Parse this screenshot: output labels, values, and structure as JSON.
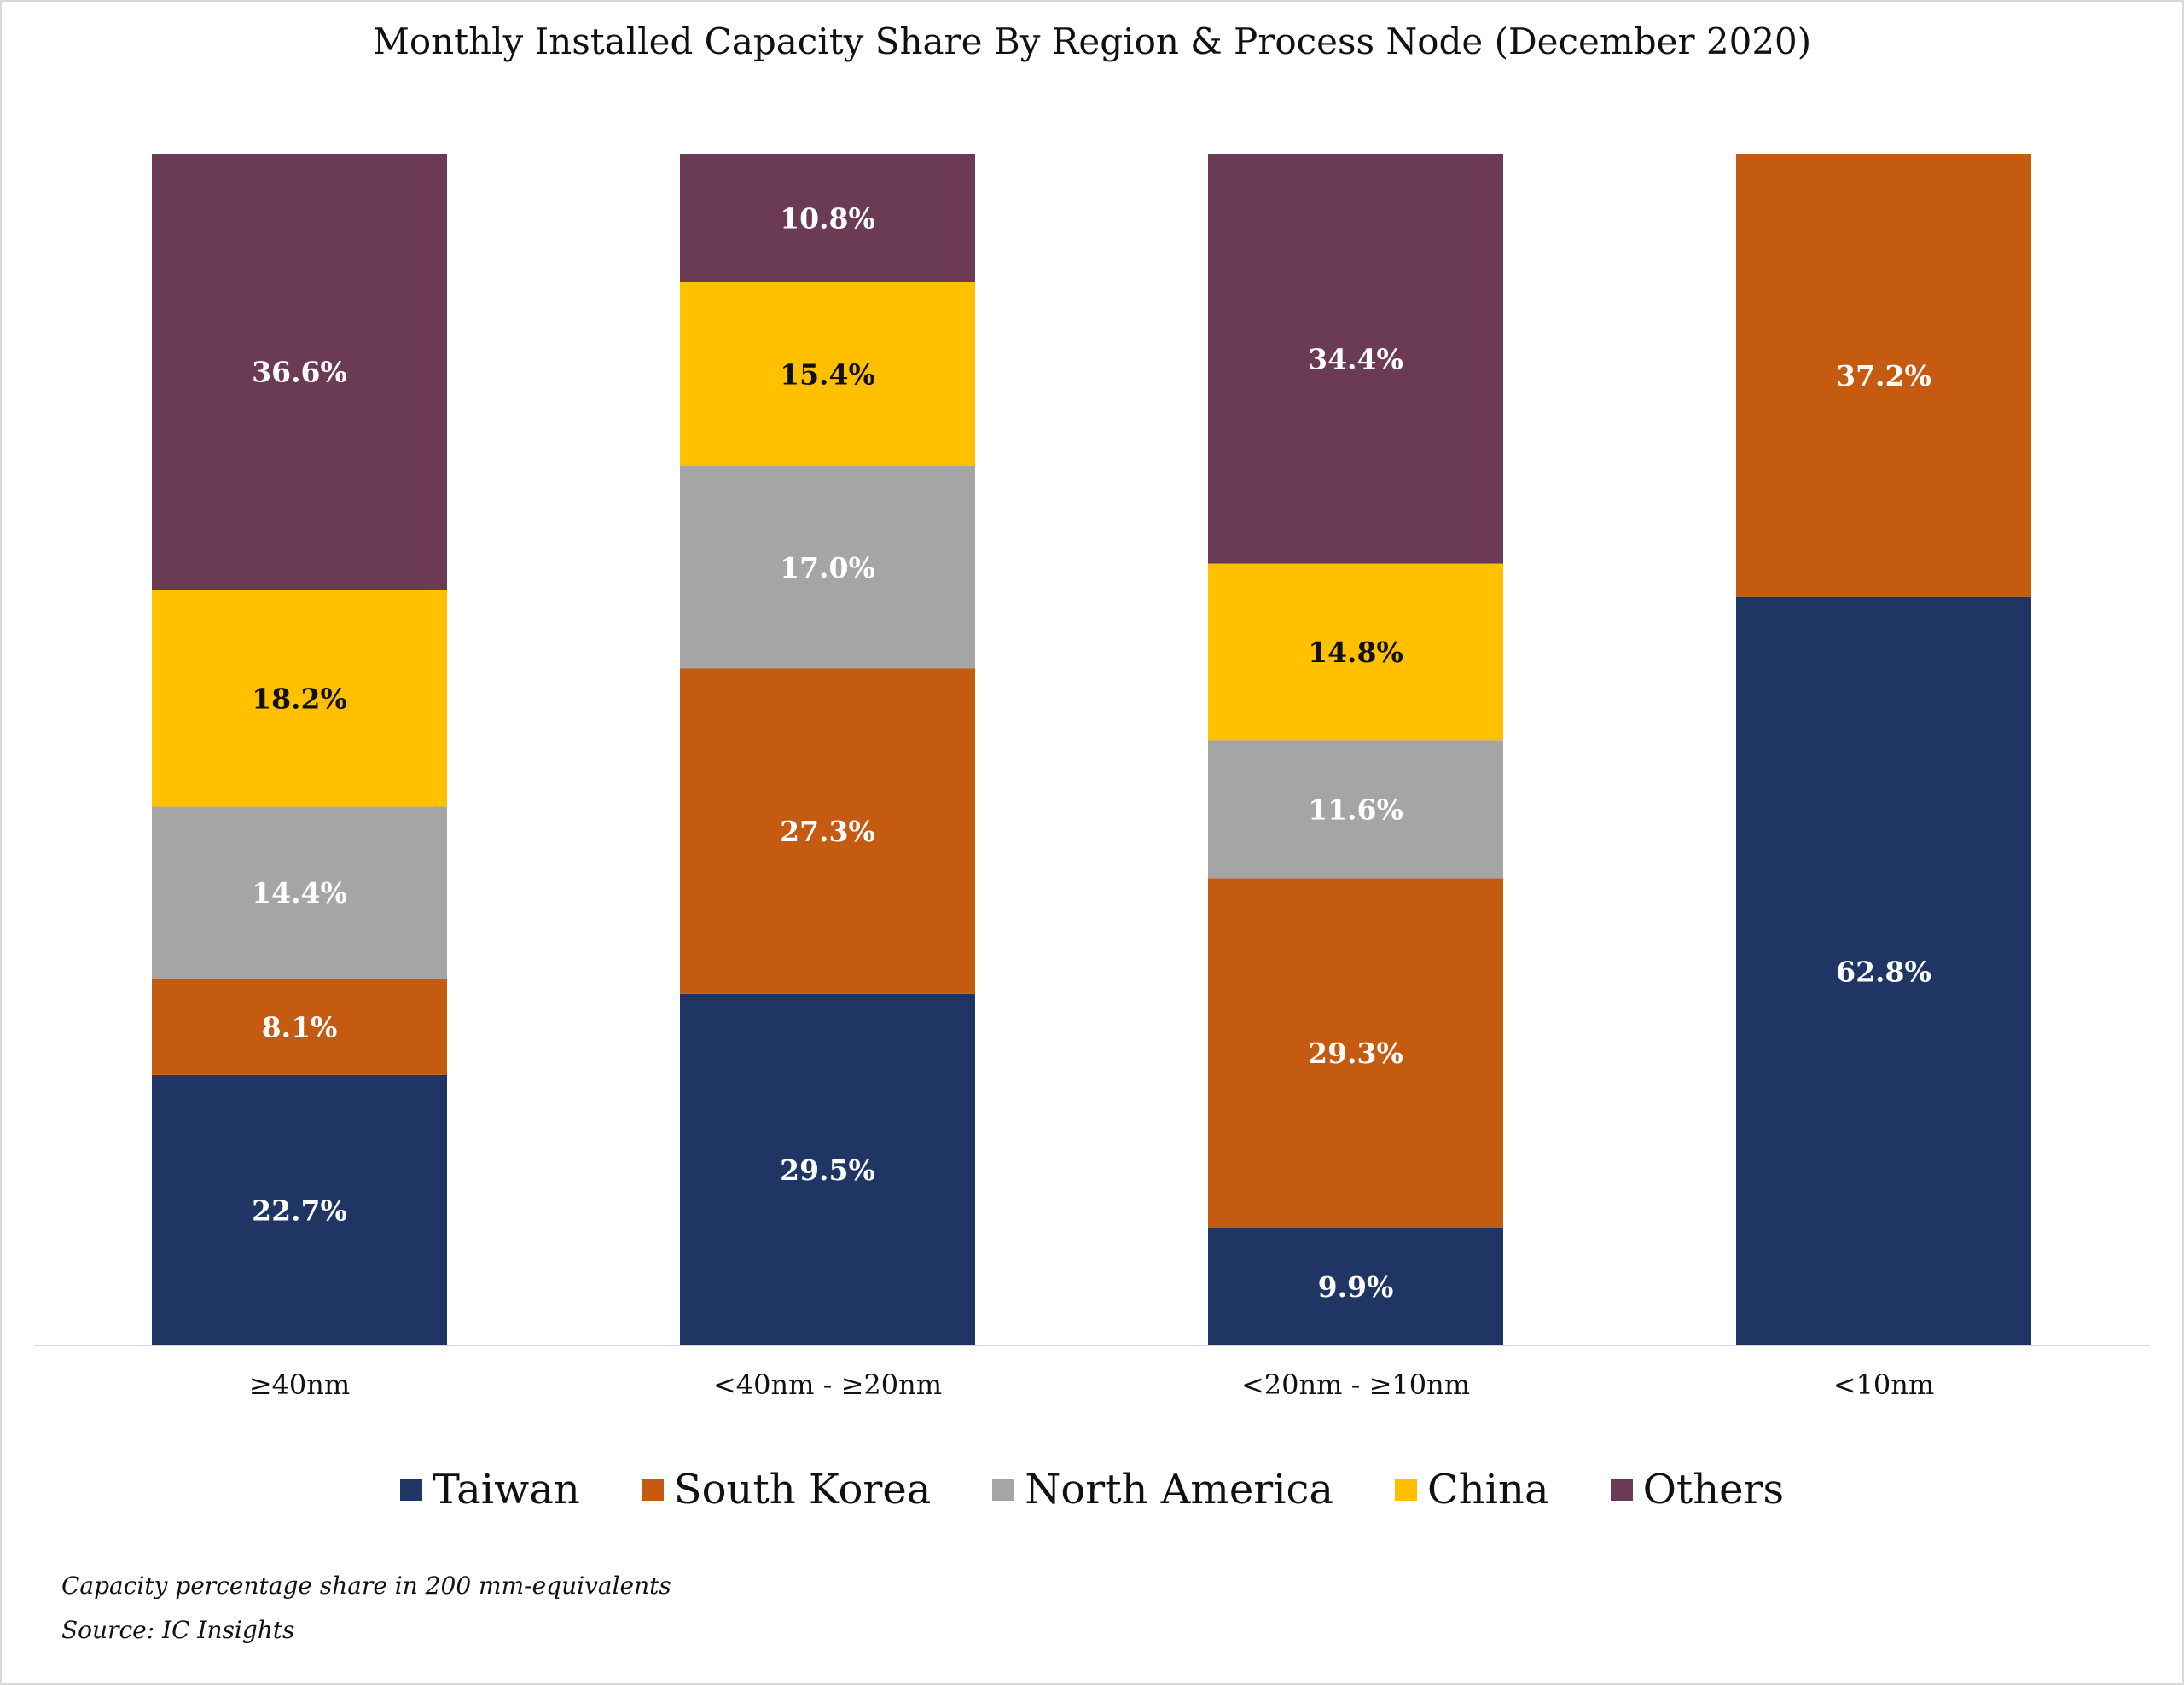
{
  "chart_data": {
    "type": "bar",
    "stacked": true,
    "title": "Monthly Installed Capacity Share By Region & Process Node (December 2020)",
    "categories": [
      "≥40nm",
      "<40nm - ≥20nm",
      "<20nm - ≥10nm",
      "<10nm"
    ],
    "series": [
      {
        "name": "Taiwan",
        "color": "#1f3564",
        "values": [
          22.7,
          29.5,
          9.9,
          62.8
        ],
        "labels": [
          "22.7%",
          "29.5%",
          "9.9%",
          "62.8%"
        ],
        "label_color": "#ffffff"
      },
      {
        "name": "South Korea",
        "color": "#c55a11",
        "values": [
          8.1,
          27.3,
          29.3,
          37.2
        ],
        "labels": [
          "8.1%",
          "27.3%",
          "29.3%",
          "37.2%"
        ],
        "label_color": "#ffffff"
      },
      {
        "name": "North America",
        "color": "#a5a5a5",
        "values": [
          14.4,
          17.0,
          11.6,
          0
        ],
        "labels": [
          "14.4%",
          "17.0%",
          "11.6%",
          ""
        ],
        "label_color": "#ffffff"
      },
      {
        "name": "China",
        "color": "#ffc000",
        "values": [
          18.2,
          15.4,
          14.8,
          0
        ],
        "labels": [
          "18.2%",
          "15.4%",
          "14.8%",
          ""
        ],
        "label_color": "#111111"
      },
      {
        "name": "Others",
        "color": "#6b3a55",
        "values": [
          36.6,
          10.8,
          34.4,
          0
        ],
        "labels": [
          "36.6%",
          "10.8%",
          "34.4%",
          ""
        ],
        "label_color": "#ffffff"
      }
    ],
    "ylim": [
      0,
      100
    ],
    "grid": false,
    "legend_position": "bottom"
  },
  "footnotes": [
    "Capacity percentage share in 200 mm-equivalents",
    "Source: IC Insights"
  ]
}
